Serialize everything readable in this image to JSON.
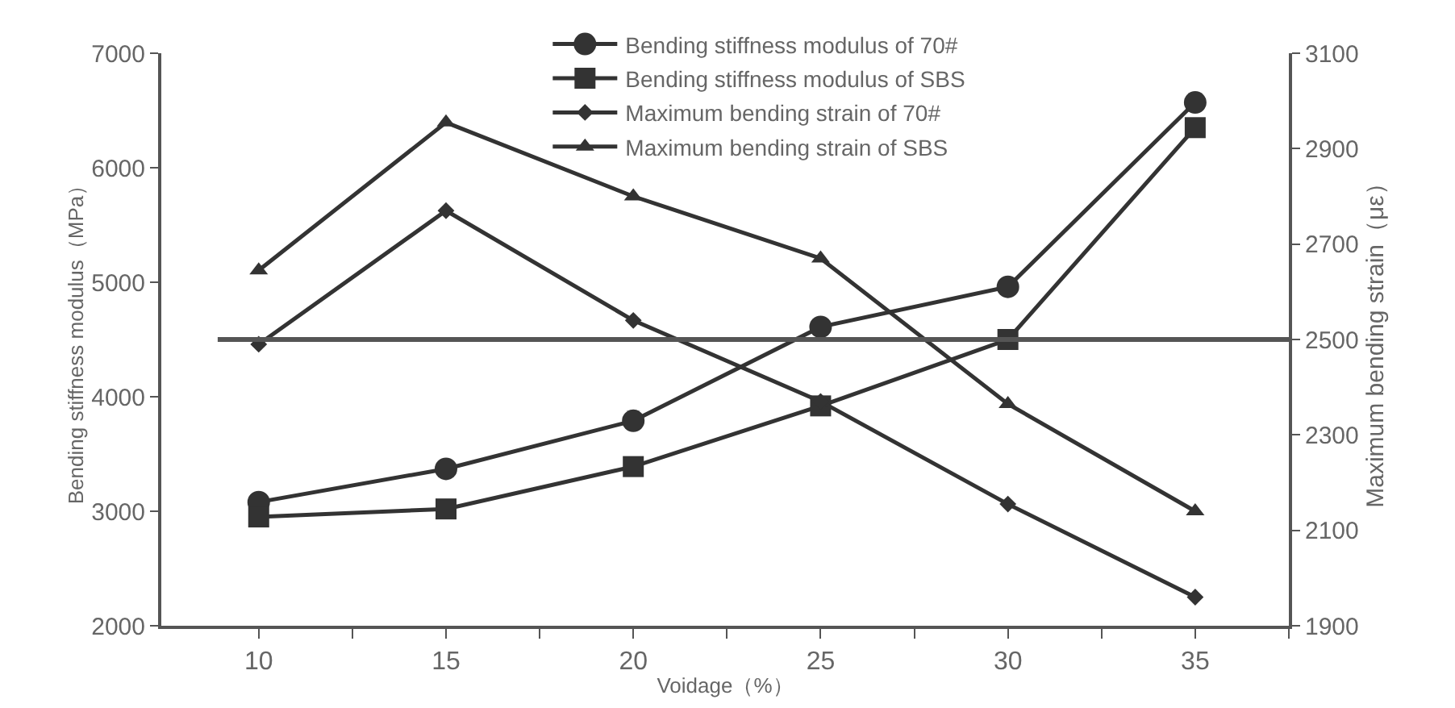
{
  "chart_data": {
    "type": "line",
    "xlabel": "Voidage（%）",
    "ylabel": "Bending stiffness modulus（MPa）",
    "y2label": "Maximum bending strain（με）",
    "x": [
      10,
      15,
      20,
      25,
      30,
      35
    ],
    "series": [
      {
        "name": "Bending stiffness modulus of 70#",
        "color": "#333333",
        "marker": "circle",
        "values": [
          3080,
          3370,
          3790,
          4610,
          4960,
          6570
        ]
      },
      {
        "name": "Bending stiffness modulus of SBS",
        "color": "#333333",
        "marker": "square",
        "values": [
          2950,
          3020,
          3390,
          3920,
          4500,
          6350
        ]
      },
      {
        "name": "Maximum bending strain of 70#",
        "color": "#333333",
        "marker": "diamond",
        "axis": "y2",
        "values": [
          2490,
          2770,
          2540,
          2370,
          2155,
          1960
        ]
      },
      {
        "name": "Maximum bending strain of SBS",
        "color": "#333333",
        "marker": "triangle",
        "axis": "y2",
        "values": [
          2645,
          2955,
          2800,
          2670,
          2365,
          2140
        ]
      }
    ],
    "xlim": [
      7.4,
      37.5
    ],
    "xticks": [
      10,
      {
        "value": 12.5,
        "label": null
      },
      15,
      {
        "value": 17.5,
        "label": null
      },
      20,
      {
        "value": 22.5,
        "label": null
      },
      25,
      {
        "value": 27.5,
        "label": null
      },
      30,
      {
        "value": 32.5,
        "label": null
      },
      35,
      {
        "value": 37.5,
        "label": null
      }
    ],
    "ylim": [
      2000,
      7000
    ],
    "yticks": [
      2000,
      3000,
      4000,
      5000,
      6000,
      7000
    ],
    "y2lim": [
      1900,
      3100
    ],
    "y2ticks": [
      1900,
      2100,
      2300,
      2500,
      2700,
      2900,
      3100
    ],
    "ref_lines": [
      {
        "axis": "y2",
        "value": 2500,
        "color": "#555555"
      }
    ],
    "grid": false,
    "legend": "top right",
    "line_style": "solid"
  }
}
